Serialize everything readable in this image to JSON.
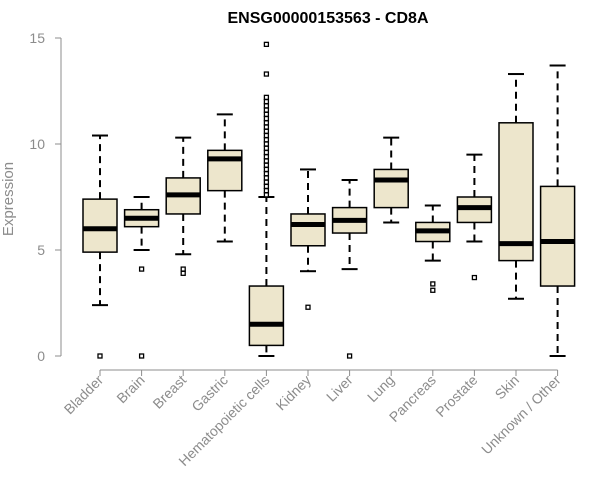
{
  "chart_data": {
    "type": "box",
    "title": "ENSG00000153563 - CD8A",
    "xlabel": "",
    "ylabel": "Expression",
    "ylim": [
      0,
      15
    ],
    "yticks": [
      0,
      5,
      10,
      15
    ],
    "grid": false,
    "box_fill": "#ede6cc",
    "categories": [
      "Bladder",
      "Brain",
      "Breast",
      "Gastric",
      "Hematopoietic cells",
      "Kidney",
      "Liver",
      "Lung",
      "Pancreas",
      "Prostate",
      "Skin",
      "Unknown / Other"
    ],
    "boxes": [
      {
        "min": 2.4,
        "q1": 4.9,
        "median": 6.0,
        "q3": 7.4,
        "max": 10.4,
        "outliers": [
          0.0
        ]
      },
      {
        "min": 5.0,
        "q1": 6.1,
        "median": 6.5,
        "q3": 6.9,
        "max": 7.5,
        "outliers": [
          4.1,
          0.0
        ]
      },
      {
        "min": 4.8,
        "q1": 6.7,
        "median": 7.6,
        "q3": 8.4,
        "max": 10.3,
        "outliers": [
          4.1,
          3.9
        ]
      },
      {
        "min": 5.4,
        "q1": 7.8,
        "median": 9.3,
        "q3": 9.7,
        "max": 11.4,
        "outliers": []
      },
      {
        "min": 0.0,
        "q1": 0.5,
        "median": 1.5,
        "q3": 3.3,
        "max": 7.5,
        "outliers": [
          7.6,
          7.8,
          8.0,
          8.2,
          8.4,
          8.6,
          8.8,
          9.0,
          9.2,
          9.4,
          9.6,
          9.8,
          10.0,
          10.2,
          10.4,
          10.6,
          10.8,
          11.0,
          11.2,
          11.4,
          11.6,
          11.8,
          12.0,
          12.2,
          13.3,
          14.7
        ]
      },
      {
        "min": 4.0,
        "q1": 5.2,
        "median": 6.2,
        "q3": 6.7,
        "max": 8.8,
        "outliers": [
          2.3
        ]
      },
      {
        "min": 4.1,
        "q1": 5.8,
        "median": 6.4,
        "q3": 7.0,
        "max": 8.3,
        "outliers": [
          0.0
        ]
      },
      {
        "min": 6.3,
        "q1": 7.0,
        "median": 8.3,
        "q3": 8.8,
        "max": 10.3,
        "outliers": []
      },
      {
        "min": 4.5,
        "q1": 5.4,
        "median": 5.9,
        "q3": 6.3,
        "max": 7.1,
        "outliers": [
          3.4,
          3.1
        ]
      },
      {
        "min": 5.4,
        "q1": 6.3,
        "median": 7.0,
        "q3": 7.5,
        "max": 9.5,
        "outliers": [
          3.7
        ]
      },
      {
        "min": 2.7,
        "q1": 4.5,
        "median": 5.3,
        "q3": 11.0,
        "max": 13.3,
        "outliers": []
      },
      {
        "min": 0.0,
        "q1": 3.3,
        "median": 5.4,
        "q3": 8.0,
        "max": 13.7,
        "outliers": []
      }
    ]
  }
}
